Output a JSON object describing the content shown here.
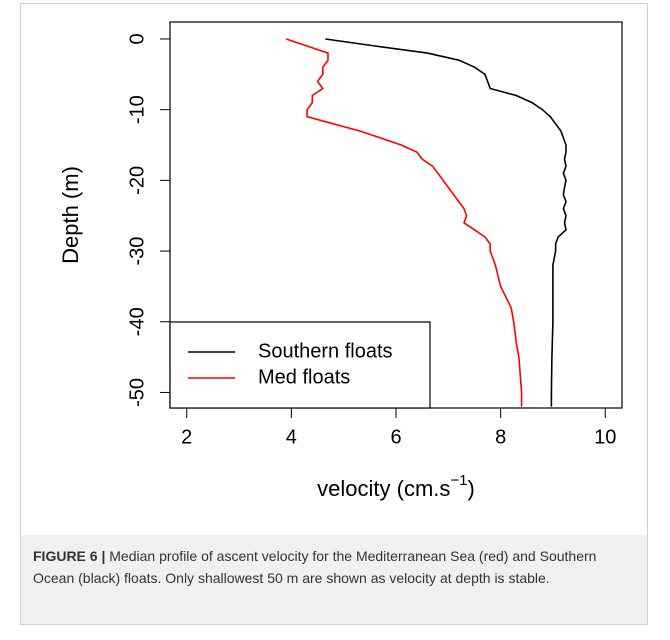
{
  "chart_data": {
    "type": "line",
    "y_label": "Depth (m)",
    "x_label": {
      "text": "velocity (cm.s",
      "superscript": "−1",
      "suffix": ")"
    },
    "xlim": [
      1.68,
      10.32
    ],
    "xticks": [
      2,
      4,
      6,
      8,
      10
    ],
    "ylim": [
      -52.2,
      2.4
    ],
    "yticks": [
      0,
      -10,
      -20,
      -30,
      -40,
      -50
    ],
    "legend": "lower left",
    "series": [
      {
        "name": "Southern floats",
        "color": "#000000",
        "x": [
          4.65,
          5.6,
          6.6,
          7.2,
          7.5,
          7.7,
          7.75,
          7.8,
          8.3,
          8.6,
          8.8,
          8.95,
          9.05,
          9.15,
          9.2,
          9.25,
          9.25,
          9.22,
          9.25,
          9.2,
          9.25,
          9.22,
          9.2,
          9.25,
          9.2,
          9.25,
          9.22,
          9.25,
          9.1,
          9.05,
          9.05,
          9.0,
          9.0,
          9.0,
          9.0,
          8.98,
          8.97,
          8.97
        ],
        "y": [
          0,
          -1,
          -2,
          -3,
          -4,
          -5,
          -6,
          -7,
          -8,
          -9,
          -10,
          -11,
          -12,
          -13,
          -14,
          -15,
          -16,
          -17,
          -18,
          -19,
          -20,
          -21,
          -22,
          -23,
          -24,
          -25,
          -26,
          -27,
          -28,
          -29,
          -30,
          -32,
          -35,
          -38,
          -40,
          -45,
          -50,
          -52
        ]
      },
      {
        "name": "Med floats",
        "color": "#ff0000",
        "x": [
          3.9,
          4.3,
          4.7,
          4.7,
          4.6,
          4.6,
          4.5,
          4.6,
          4.4,
          4.4,
          4.3,
          4.3,
          4.8,
          5.3,
          5.7,
          6.1,
          6.4,
          6.5,
          6.7,
          6.8,
          6.9,
          7.0,
          7.1,
          7.2,
          7.3,
          7.35,
          7.3,
          7.5,
          7.7,
          7.8,
          7.8,
          7.9,
          8.0,
          8.2,
          8.25,
          8.3,
          8.35,
          8.4,
          8.4
        ],
        "y": [
          0,
          -1,
          -2,
          -3,
          -4,
          -5,
          -6,
          -7,
          -8,
          -9,
          -10,
          -11,
          -12,
          -13,
          -14,
          -15,
          -16,
          -17,
          -18,
          -19,
          -20,
          -21,
          -22,
          -23,
          -24,
          -25,
          -26,
          -27,
          -28,
          -29,
          -30,
          -32,
          -35,
          -38,
          -40,
          -43,
          -45,
          -50,
          -52
        ]
      }
    ]
  },
  "caption": {
    "label": "FIGURE 6 |",
    "text": "Median profile of ascent velocity for the Mediterranean Sea (red) and Southern Ocean (black) floats. Only shallowest 50 m are shown as velocity at depth is stable."
  }
}
